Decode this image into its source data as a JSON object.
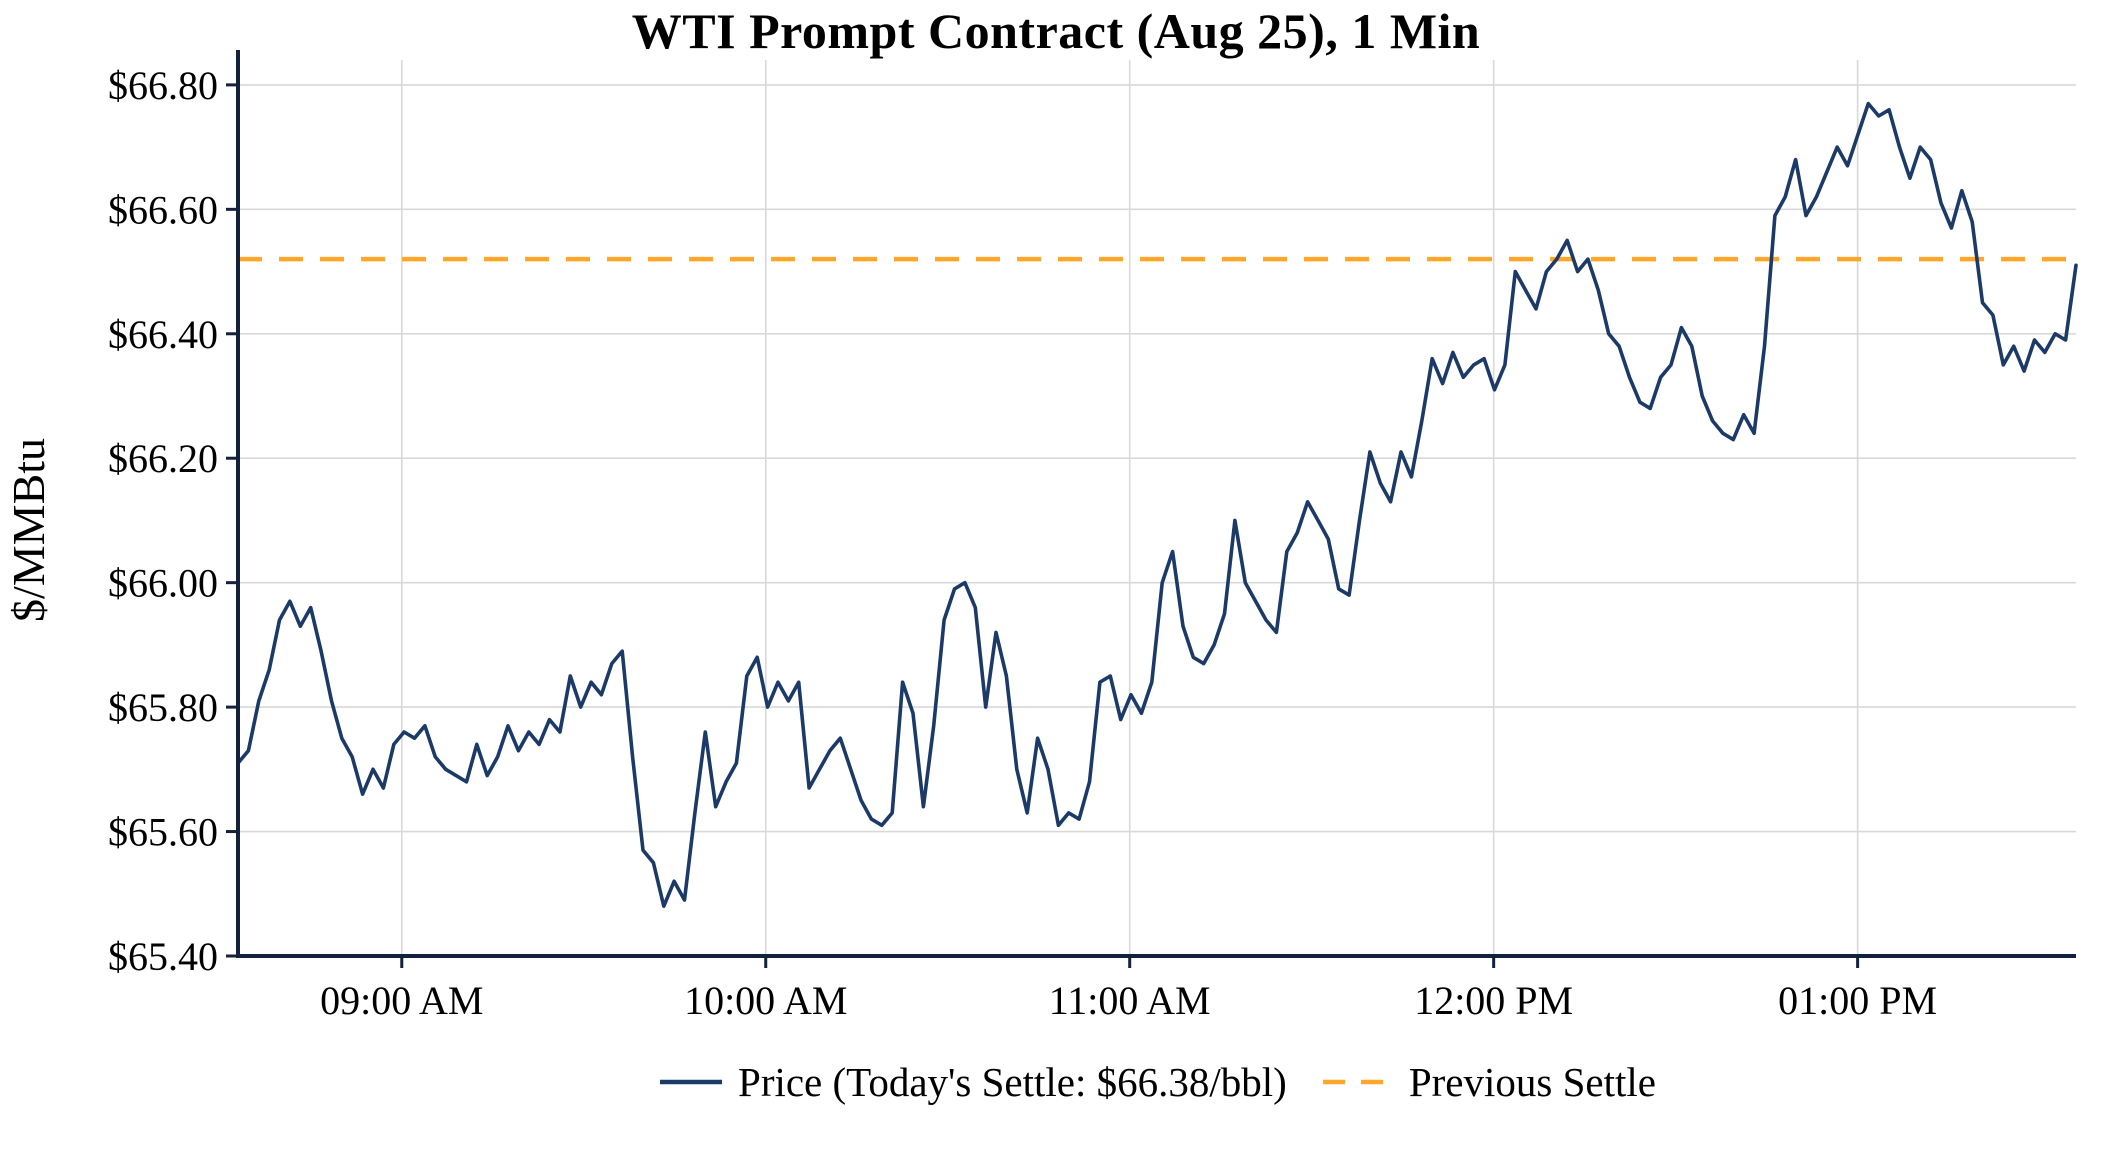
{
  "chart_data": {
    "type": "line",
    "title": "WTI Prompt Contract (Aug 25), 1 Min",
    "ylabel": "$/MMBtu",
    "xlabel": "",
    "ylim": [
      65.4,
      66.84
    ],
    "grid": true,
    "yticks": [
      {
        "v": 65.4,
        "label": "$65.40"
      },
      {
        "v": 65.6,
        "label": "$65.60"
      },
      {
        "v": 65.8,
        "label": "$65.80"
      },
      {
        "v": 66.0,
        "label": "$66.00"
      },
      {
        "v": 66.2,
        "label": "$66.20"
      },
      {
        "v": 66.4,
        "label": "$66.40"
      },
      {
        "v": 66.6,
        "label": "$66.60"
      },
      {
        "v": 66.8,
        "label": "$66.80"
      }
    ],
    "x_time": {
      "start_label": "08:33 AM",
      "end_label": "01:36 PM",
      "start_min": 513,
      "end_min": 816
    },
    "xticks": [
      {
        "t": 540,
        "label": "09:00 AM"
      },
      {
        "t": 600,
        "label": "10:00 AM"
      },
      {
        "t": 660,
        "label": "11:00 AM"
      },
      {
        "t": 720,
        "label": "12:00 PM"
      },
      {
        "t": 780,
        "label": "01:00 PM"
      }
    ],
    "previous_settle": 66.52,
    "todays_settle": 66.38,
    "colors": {
      "price_line": "#1c3a68",
      "previous_settle_line": "#FFA62B",
      "grid": "#d9d9d9",
      "axis": "#14213d",
      "text": "#000000"
    },
    "series": [
      {
        "name": "Price",
        "values": [
          65.71,
          65.73,
          65.81,
          65.86,
          65.94,
          65.97,
          65.93,
          65.96,
          65.89,
          65.81,
          65.75,
          65.72,
          65.66,
          65.7,
          65.67,
          65.74,
          65.76,
          65.75,
          65.77,
          65.72,
          65.7,
          65.69,
          65.68,
          65.74,
          65.69,
          65.72,
          65.77,
          65.73,
          65.76,
          65.74,
          65.78,
          65.76,
          65.85,
          65.8,
          65.84,
          65.82,
          65.87,
          65.89,
          65.72,
          65.57,
          65.55,
          65.48,
          65.52,
          65.49,
          65.63,
          65.76,
          65.64,
          65.68,
          65.71,
          65.85,
          65.88,
          65.8,
          65.84,
          65.81,
          65.84,
          65.67,
          65.7,
          65.73,
          65.75,
          65.7,
          65.65,
          65.62,
          65.61,
          65.63,
          65.84,
          65.79,
          65.64,
          65.77,
          65.94,
          65.99,
          66.0,
          65.96,
          65.8,
          65.92,
          65.85,
          65.7,
          65.63,
          65.75,
          65.7,
          65.61,
          65.63,
          65.62,
          65.68,
          65.84,
          65.85,
          65.78,
          65.82,
          65.79,
          65.84,
          66.0,
          66.05,
          65.93,
          65.88,
          65.87,
          65.9,
          65.95,
          66.1,
          66.0,
          65.97,
          65.94,
          65.92,
          66.05,
          66.08,
          66.13,
          66.1,
          66.07,
          65.99,
          65.98,
          66.1,
          66.21,
          66.16,
          66.13,
          66.21,
          66.17,
          66.26,
          66.36,
          66.32,
          66.37,
          66.33,
          66.35,
          66.36,
          66.31,
          66.35,
          66.5,
          66.47,
          66.44,
          66.5,
          66.52,
          66.55,
          66.5,
          66.52,
          66.47,
          66.4,
          66.38,
          66.33,
          66.29,
          66.28,
          66.33,
          66.35,
          66.41,
          66.38,
          66.3,
          66.26,
          66.24,
          66.23,
          66.27,
          66.24,
          66.38,
          66.59,
          66.62,
          66.68,
          66.59,
          66.62,
          66.66,
          66.7,
          66.67,
          66.72,
          66.77,
          66.75,
          66.76,
          66.7,
          66.65,
          66.7,
          66.68,
          66.61,
          66.57,
          66.63,
          66.58,
          66.45,
          66.43,
          66.35,
          66.38,
          66.34,
          66.39,
          66.37,
          66.4,
          66.39,
          66.51
        ]
      }
    ],
    "legend": [
      {
        "label": "Price (Today's Settle: $66.38/bbl)",
        "style": "solid",
        "color": "#1c3a68"
      },
      {
        "label": "Previous Settle",
        "style": "dashed",
        "color": "#FFA62B"
      }
    ],
    "legend_position": "bottom"
  }
}
